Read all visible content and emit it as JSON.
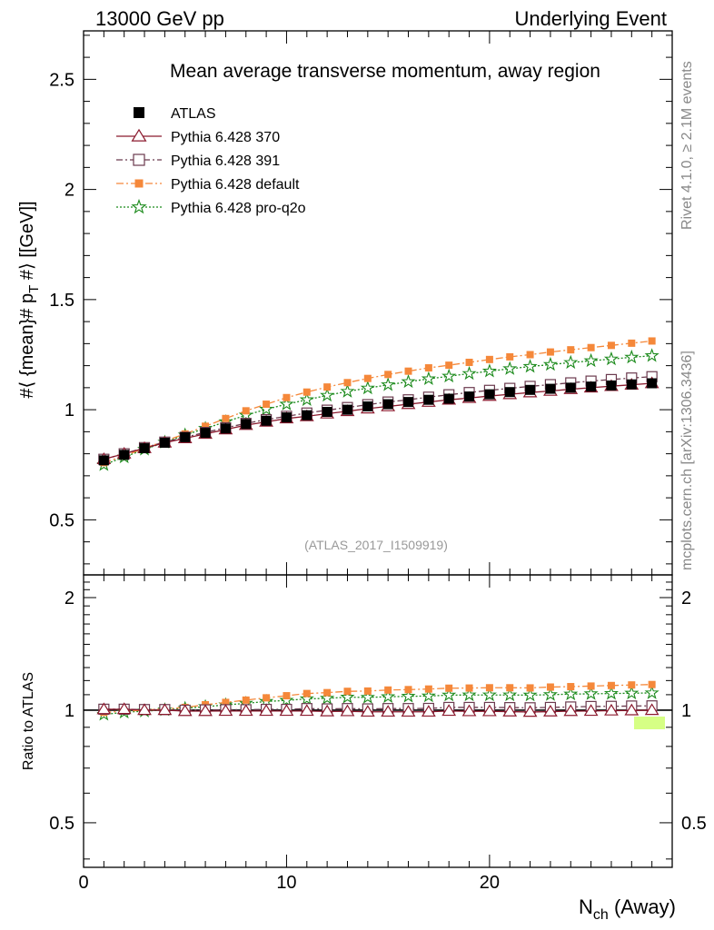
{
  "header": {
    "left": "13000 GeV pp",
    "right": "Underlying Event"
  },
  "side_labels": {
    "rivet": "Rivet 4.1.0, ≥ 2.1M events",
    "mcplots": "mcplots.cern.ch [arXiv:1306.3436]"
  },
  "chart_data": [
    {
      "type": "line",
      "panel": "main",
      "title": "Mean average transverse momentum, away region",
      "watermark": "(ATLAS_2017_I1509919)",
      "ylabel": "#⟨ {mean}# p_T #⟩ [[GeV]]",
      "ylabel_parts": {
        "main": "#⟨ {mean}# p",
        "sub": "T",
        "tail": " #⟩ [[GeV]]"
      },
      "xlim": [
        0,
        29
      ],
      "ylim": [
        0.25,
        2.72
      ],
      "ytick_values": [
        0.5,
        1,
        1.5,
        2,
        2.5
      ],
      "ytick_labels": [
        "0.5",
        "1",
        "1.5",
        "2",
        "2.5"
      ],
      "x": [
        1,
        2,
        3,
        4,
        5,
        6,
        7,
        8,
        9,
        10,
        11,
        12,
        13,
        14,
        15,
        16,
        17,
        18,
        19,
        20,
        21,
        22,
        23,
        24,
        25,
        26,
        27,
        28
      ],
      "series": [
        {
          "name": "ATLAS",
          "color": "#000000",
          "marker": "square-filled",
          "values": [
            0.77,
            0.795,
            0.825,
            0.85,
            0.875,
            0.895,
            0.915,
            0.935,
            0.95,
            0.965,
            0.975,
            0.99,
            1.0,
            1.015,
            1.025,
            1.035,
            1.045,
            1.05,
            1.06,
            1.07,
            1.08,
            1.09,
            1.095,
            1.1,
            1.105,
            1.11,
            1.115,
            1.12
          ]
        },
        {
          "name": "Pythia 6.428 370",
          "color": "#8b1a2e",
          "marker": "triangle-open",
          "dash": "",
          "values": [
            0.775,
            0.8,
            0.825,
            0.85,
            0.87,
            0.89,
            0.91,
            0.93,
            0.945,
            0.96,
            0.97,
            0.982,
            0.993,
            1.005,
            1.015,
            1.025,
            1.035,
            1.045,
            1.053,
            1.062,
            1.07,
            1.078,
            1.085,
            1.093,
            1.1,
            1.107,
            1.113,
            1.12
          ]
        },
        {
          "name": "Pythia 6.428 391",
          "color": "#6b3a4e",
          "marker": "square-open",
          "dash": "7,3,2,3",
          "values": [
            0.775,
            0.8,
            0.828,
            0.853,
            0.875,
            0.897,
            0.918,
            0.938,
            0.955,
            0.97,
            0.985,
            0.998,
            1.01,
            1.023,
            1.035,
            1.045,
            1.057,
            1.068,
            1.078,
            1.088,
            1.097,
            1.106,
            1.114,
            1.122,
            1.13,
            1.137,
            1.144,
            1.15
          ]
        },
        {
          "name": "Pythia 6.428 default",
          "color": "#f5883a",
          "marker": "square-filled",
          "dash": "8,3,2,3",
          "values": [
            0.76,
            0.79,
            0.825,
            0.858,
            0.89,
            0.925,
            0.96,
            0.995,
            1.025,
            1.055,
            1.08,
            1.103,
            1.123,
            1.142,
            1.16,
            1.175,
            1.19,
            1.202,
            1.215,
            1.228,
            1.24,
            1.25,
            1.262,
            1.272,
            1.282,
            1.292,
            1.302,
            1.312
          ]
        },
        {
          "name": "Pythia 6.428 pro-q2o",
          "color": "#1b8a1b",
          "marker": "star",
          "dash": "2,2",
          "values": [
            0.75,
            0.785,
            0.82,
            0.852,
            0.885,
            0.915,
            0.945,
            0.975,
            1.002,
            1.025,
            1.045,
            1.065,
            1.083,
            1.098,
            1.113,
            1.127,
            1.14,
            1.152,
            1.164,
            1.175,
            1.186,
            1.196,
            1.205,
            1.214,
            1.222,
            1.23,
            1.238,
            1.245
          ]
        }
      ]
    },
    {
      "type": "line",
      "panel": "ratio",
      "ylabel": "Ratio to ATLAS",
      "xlabel_main": "N",
      "xlabel_sub": "ch",
      "xlabel_tail": " (Away)",
      "xlim": [
        0,
        29
      ],
      "ylim": [
        0.38,
        2.3
      ],
      "ytick_values": [
        0.5,
        1,
        2
      ],
      "ytick_labels": [
        "0.5",
        "1",
        "2"
      ],
      "xtick_values": [
        0,
        10,
        20
      ],
      "xtick_labels": [
        "0",
        "10",
        "20"
      ],
      "reference_value": 1,
      "x": [
        1,
        2,
        3,
        4,
        5,
        6,
        7,
        8,
        9,
        10,
        11,
        12,
        13,
        14,
        15,
        16,
        17,
        18,
        19,
        20,
        21,
        22,
        23,
        24,
        25,
        26,
        27,
        28
      ],
      "series": [
        {
          "name": "Pythia 6.428 370",
          "color": "#8b1a2e",
          "marker": "triangle-open",
          "dash": "",
          "values": [
            1.005,
            1.006,
            1.0,
            1.0,
            0.994,
            0.994,
            0.995,
            0.995,
            0.995,
            0.995,
            0.995,
            0.992,
            0.993,
            0.99,
            0.99,
            0.99,
            0.99,
            0.995,
            0.993,
            0.993,
            0.991,
            0.989,
            0.991,
            0.994,
            0.995,
            0.997,
            0.998,
            1.0
          ]
        },
        {
          "name": "Pythia 6.428 391",
          "color": "#6b3a4e",
          "marker": "square-open",
          "dash": "7,3,2,3",
          "values": [
            1.006,
            1.006,
            1.004,
            1.004,
            1.0,
            1.002,
            1.003,
            1.003,
            1.005,
            1.005,
            1.01,
            1.008,
            1.01,
            1.008,
            1.01,
            1.01,
            1.011,
            1.017,
            1.017,
            1.017,
            1.016,
            1.015,
            1.017,
            1.02,
            1.023,
            1.024,
            1.026,
            1.027
          ]
        },
        {
          "name": "Pythia 6.428 default",
          "color": "#f5883a",
          "marker": "square-filled",
          "dash": "8,3,2,3",
          "values": [
            0.987,
            0.994,
            1.0,
            1.009,
            1.017,
            1.034,
            1.049,
            1.064,
            1.079,
            1.093,
            1.108,
            1.114,
            1.123,
            1.125,
            1.132,
            1.135,
            1.139,
            1.145,
            1.146,
            1.148,
            1.148,
            1.147,
            1.153,
            1.156,
            1.16,
            1.164,
            1.168,
            1.171
          ]
        },
        {
          "name": "Pythia 6.428 pro-q2o",
          "color": "#1b8a1b",
          "marker": "star",
          "dash": "2,2",
          "values": [
            0.974,
            0.987,
            0.994,
            1.002,
            1.011,
            1.022,
            1.033,
            1.043,
            1.055,
            1.062,
            1.072,
            1.076,
            1.083,
            1.082,
            1.086,
            1.089,
            1.091,
            1.097,
            1.098,
            1.098,
            1.098,
            1.097,
            1.1,
            1.104,
            1.106,
            1.108,
            1.11,
            1.112
          ]
        }
      ]
    }
  ]
}
